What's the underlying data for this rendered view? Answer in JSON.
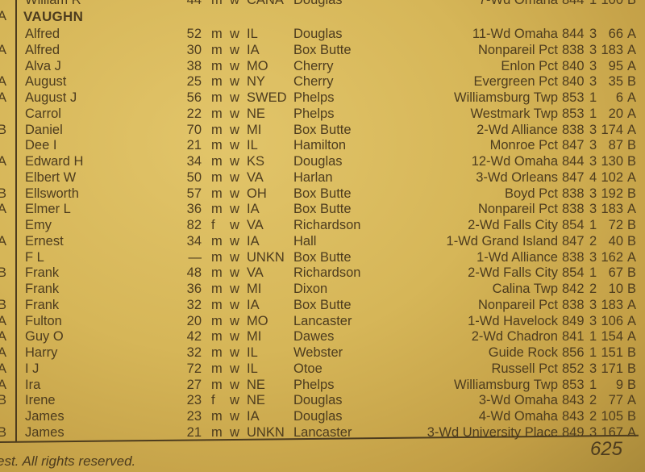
{
  "top_row": {
    "marker": "",
    "name": "William R",
    "age": "44",
    "sex": "m",
    "race": "w",
    "birthplace": "CANA",
    "county": "Douglas",
    "location": "7-Wd Omaha",
    "c1": "844",
    "c2": "1",
    "c3": "100",
    "c4": "B"
  },
  "surname": {
    "marker": "A",
    "text": "VAUGHN"
  },
  "rows": [
    {
      "marker": "",
      "name": "Alfred",
      "age": "52",
      "sex": "m",
      "race": "w",
      "birthplace": "IL",
      "county": "Douglas",
      "location": "11-Wd Omaha",
      "c1": "844",
      "c2": "3",
      "c3": "66",
      "c4": "A"
    },
    {
      "marker": "A",
      "name": "Alfred",
      "age": "30",
      "sex": "m",
      "race": "w",
      "birthplace": "IA",
      "county": "Box Butte",
      "location": "Nonpareil Pct",
      "c1": "838",
      "c2": "3",
      "c3": "183",
      "c4": "A"
    },
    {
      "marker": "",
      "name": "Alva J",
      "age": "38",
      "sex": "m",
      "race": "w",
      "birthplace": "MO",
      "county": "Cherry",
      "location": "Enlon Pct",
      "c1": "840",
      "c2": "3",
      "c3": "95",
      "c4": "A"
    },
    {
      "marker": "A",
      "name": "August",
      "age": "25",
      "sex": "m",
      "race": "w",
      "birthplace": "NY",
      "county": "Cherry",
      "location": "Evergreen Pct",
      "c1": "840",
      "c2": "3",
      "c3": "35",
      "c4": "B"
    },
    {
      "marker": "A",
      "name": "August J",
      "age": "56",
      "sex": "m",
      "race": "w",
      "birthplace": "SWED",
      "county": "Phelps",
      "location": "Williamsburg Twp",
      "c1": "853",
      "c2": "1",
      "c3": "6",
      "c4": "A"
    },
    {
      "marker": "",
      "name": "Carrol",
      "age": "22",
      "sex": "m",
      "race": "w",
      "birthplace": "NE",
      "county": "Phelps",
      "location": "Westmark Twp",
      "c1": "853",
      "c2": "1",
      "c3": "20",
      "c4": "A"
    },
    {
      "marker": "B",
      "name": "Daniel",
      "age": "70",
      "sex": "m",
      "race": "w",
      "birthplace": "MI",
      "county": "Box Butte",
      "location": "2-Wd Alliance",
      "c1": "838",
      "c2": "3",
      "c3": "174",
      "c4": "A"
    },
    {
      "marker": "",
      "name": "Dee I",
      "age": "21",
      "sex": "m",
      "race": "w",
      "birthplace": "IL",
      "county": "Hamilton",
      "location": "Monroe Pct",
      "c1": "847",
      "c2": "3",
      "c3": "87",
      "c4": "B"
    },
    {
      "marker": "A",
      "name": "Edward H",
      "age": "34",
      "sex": "m",
      "race": "w",
      "birthplace": "KS",
      "county": "Douglas",
      "location": "12-Wd Omaha",
      "c1": "844",
      "c2": "3",
      "c3": "130",
      "c4": "B"
    },
    {
      "marker": "",
      "name": "Elbert W",
      "age": "50",
      "sex": "m",
      "race": "w",
      "birthplace": "VA",
      "county": "Harlan",
      "location": "3-Wd Orleans",
      "c1": "847",
      "c2": "4",
      "c3": "102",
      "c4": "A"
    },
    {
      "marker": "B",
      "name": "Ellsworth",
      "age": "57",
      "sex": "m",
      "race": "w",
      "birthplace": "OH",
      "county": "Box Butte",
      "location": "Boyd Pct",
      "c1": "838",
      "c2": "3",
      "c3": "192",
      "c4": "B"
    },
    {
      "marker": "A",
      "name": "Elmer L",
      "age": "36",
      "sex": "m",
      "race": "w",
      "birthplace": "IA",
      "county": "Box Butte",
      "location": "Nonpareil Pct",
      "c1": "838",
      "c2": "3",
      "c3": "183",
      "c4": "A"
    },
    {
      "marker": "",
      "name": "Emy",
      "age": "82",
      "sex": "f",
      "race": "w",
      "birthplace": "VA",
      "county": "Richardson",
      "location": "2-Wd Falls City",
      "c1": "854",
      "c2": "1",
      "c3": "72",
      "c4": "B"
    },
    {
      "marker": "A",
      "name": "Ernest",
      "age": "34",
      "sex": "m",
      "race": "w",
      "birthplace": "IA",
      "county": "Hall",
      "location": "1-Wd Grand Island",
      "c1": "847",
      "c2": "2",
      "c3": "40",
      "c4": "B"
    },
    {
      "marker": "",
      "name": "F L",
      "age": "—",
      "sex": "m",
      "race": "w",
      "birthplace": "UNKN",
      "county": "Box Butte",
      "location": "1-Wd Alliance",
      "c1": "838",
      "c2": "3",
      "c3": "162",
      "c4": "A"
    },
    {
      "marker": "B",
      "name": "Frank",
      "age": "48",
      "sex": "m",
      "race": "w",
      "birthplace": "VA",
      "county": "Richardson",
      "location": "2-Wd Falls City",
      "c1": "854",
      "c2": "1",
      "c3": "67",
      "c4": "B"
    },
    {
      "marker": "",
      "name": "Frank",
      "age": "36",
      "sex": "m",
      "race": "w",
      "birthplace": "MI",
      "county": "Dixon",
      "location": "Calina Twp",
      "c1": "842",
      "c2": "2",
      "c3": "10",
      "c4": "B"
    },
    {
      "marker": "B",
      "name": "Frank",
      "age": "32",
      "sex": "m",
      "race": "w",
      "birthplace": "IA",
      "county": "Box Butte",
      "location": "Nonpareil Pct",
      "c1": "838",
      "c2": "3",
      "c3": "183",
      "c4": "A"
    },
    {
      "marker": "A",
      "name": "Fulton",
      "age": "20",
      "sex": "m",
      "race": "w",
      "birthplace": "MO",
      "county": "Lancaster",
      "location": "1-Wd Havelock",
      "c1": "849",
      "c2": "3",
      "c3": "106",
      "c4": "A"
    },
    {
      "marker": "A",
      "name": "Guy O",
      "age": "42",
      "sex": "m",
      "race": "w",
      "birthplace": "MI",
      "county": "Dawes",
      "location": "2-Wd Chadron",
      "c1": "841",
      "c2": "1",
      "c3": "154",
      "c4": "A"
    },
    {
      "marker": "A",
      "name": "Harry",
      "age": "32",
      "sex": "m",
      "race": "w",
      "birthplace": "IL",
      "county": "Webster",
      "location": "Guide Rock",
      "c1": "856",
      "c2": "1",
      "c3": "151",
      "c4": "B"
    },
    {
      "marker": "A",
      "name": "I J",
      "age": "72",
      "sex": "m",
      "race": "w",
      "birthplace": "IL",
      "county": "Otoe",
      "location": "Russell Pct",
      "c1": "852",
      "c2": "3",
      "c3": "171",
      "c4": "B"
    },
    {
      "marker": "A",
      "name": "Ira",
      "age": "27",
      "sex": "m",
      "race": "w",
      "birthplace": "NE",
      "county": "Phelps",
      "location": "Williamsburg Twp",
      "c1": "853",
      "c2": "1",
      "c3": "9",
      "c4": "B"
    },
    {
      "marker": "B",
      "name": "Irene",
      "age": "23",
      "sex": "f",
      "race": "w",
      "birthplace": "NE",
      "county": "Douglas",
      "location": "3-Wd Omaha",
      "c1": "843",
      "c2": "2",
      "c3": "77",
      "c4": "A"
    },
    {
      "marker": "",
      "name": "James",
      "age": "23",
      "sex": "m",
      "race": "w",
      "birthplace": "IA",
      "county": "Douglas",
      "location": "4-Wd Omaha",
      "c1": "843",
      "c2": "2",
      "c3": "105",
      "c4": "B"
    },
    {
      "marker": "B",
      "name": "James",
      "age": "21",
      "sex": "m",
      "race": "w",
      "birthplace": "UNKN",
      "county": "Lancaster",
      "location": "3-Wd University Place",
      "c1": "849",
      "c2": "3",
      "c3": "167",
      "c4": "A"
    }
  ],
  "footer": {
    "text": "est. All rights reserved.",
    "page_number": "625"
  },
  "colors": {
    "paper": "#d6b658",
    "ink": "#4d3c1e"
  }
}
